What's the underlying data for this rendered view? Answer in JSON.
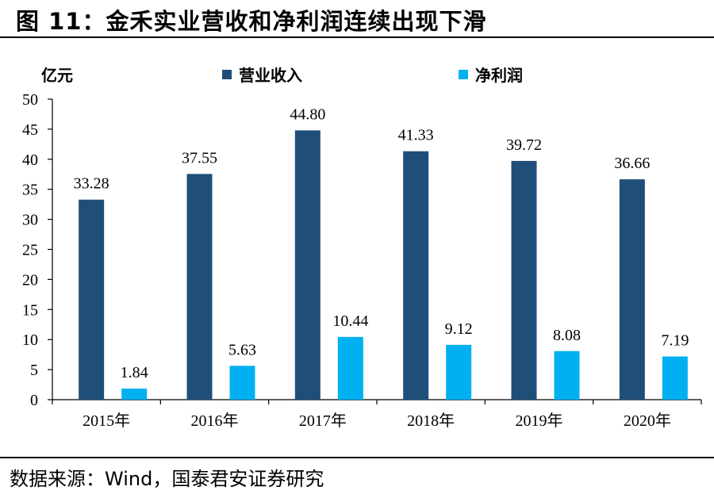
{
  "figure": {
    "title": "图 11：金禾实业营收和净利润连续出现下滑",
    "source": "数据来源：Wind，国泰君安证券研究"
  },
  "chart_data": {
    "type": "bar",
    "categories": [
      "2015年",
      "2016年",
      "2017年",
      "2018年",
      "2019年",
      "2020年"
    ],
    "series": [
      {
        "name": "营业收入",
        "color": "#1f4e79",
        "values": [
          33.28,
          37.55,
          44.8,
          41.33,
          39.72,
          36.66
        ],
        "labels": [
          "33.28",
          "37.55",
          "44.80",
          "41.33",
          "39.72",
          "36.66"
        ]
      },
      {
        "name": "净利润",
        "color": "#00b0f0",
        "values": [
          1.84,
          5.63,
          10.44,
          9.12,
          8.08,
          7.19
        ],
        "labels": [
          "1.84",
          "5.63",
          "10.44",
          "9.12",
          "8.08",
          "7.19"
        ]
      }
    ],
    "ylabel": "亿元",
    "ylim": [
      0,
      50
    ],
    "yticks": [
      0,
      5,
      10,
      15,
      20,
      25,
      30,
      35,
      40,
      45,
      50
    ],
    "grid": false,
    "legend_position": "top"
  }
}
